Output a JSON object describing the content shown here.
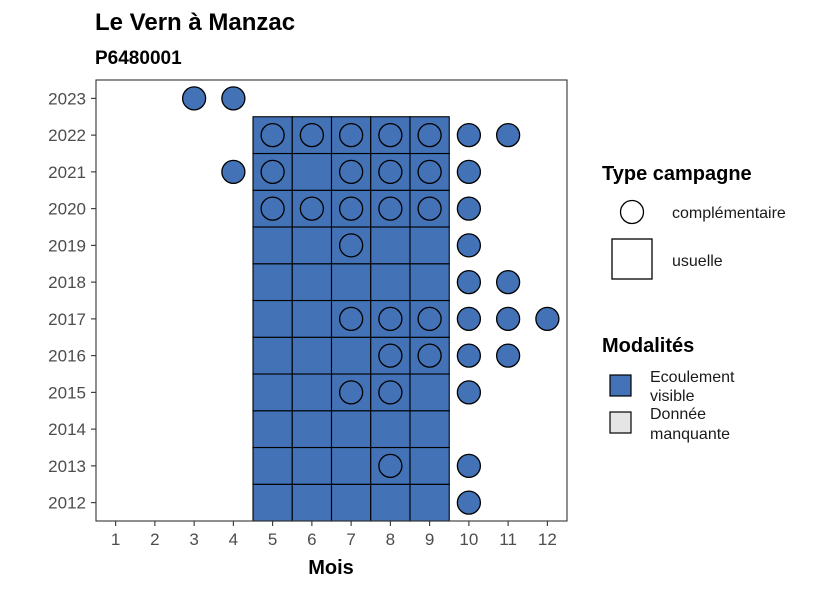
{
  "chart_data": {
    "type": "heatmap",
    "title": "Le Vern à Manzac",
    "subtitle": "P6480001",
    "xlabel": "Mois",
    "ylabel": "",
    "x_ticks": [
      1,
      2,
      3,
      4,
      5,
      6,
      7,
      8,
      9,
      10,
      11,
      12
    ],
    "y_ticks": [
      2012,
      2013,
      2014,
      2015,
      2016,
      2017,
      2018,
      2019,
      2020,
      2021,
      2022,
      2023
    ],
    "xlim": [
      0.5,
      12.5
    ],
    "ylim": [
      2011.5,
      2023.5
    ],
    "grid": false,
    "colors": {
      "ecoulement_visible": "#4372b6",
      "donnee_manquante": "#e5e5e5",
      "outline": "#000000"
    },
    "usuelle_tiles": {
      "modalite": "Ecoulement visible",
      "months": [
        5,
        6,
        7,
        8,
        9
      ],
      "years": [
        2012,
        2013,
        2014,
        2015,
        2016,
        2017,
        2018,
        2019,
        2020,
        2021,
        2022
      ]
    },
    "complementaire_points": [
      {
        "year": 2023,
        "months": [
          3,
          4
        ]
      },
      {
        "year": 2022,
        "months": [
          5,
          6,
          7,
          8,
          9,
          10,
          11
        ]
      },
      {
        "year": 2021,
        "months": [
          4,
          5,
          7,
          8,
          9,
          10
        ]
      },
      {
        "year": 2020,
        "months": [
          5,
          6,
          7,
          8,
          9,
          10
        ]
      },
      {
        "year": 2019,
        "months": [
          7,
          10
        ]
      },
      {
        "year": 2018,
        "months": [
          10,
          11
        ]
      },
      {
        "year": 2017,
        "months": [
          7,
          8,
          9,
          10,
          11,
          12
        ]
      },
      {
        "year": 2016,
        "months": [
          8,
          9,
          10,
          11
        ]
      },
      {
        "year": 2015,
        "months": [
          7,
          8,
          10
        ]
      },
      {
        "year": 2014,
        "months": []
      },
      {
        "year": 2013,
        "months": [
          8,
          10
        ]
      },
      {
        "year": 2012,
        "months": [
          10
        ]
      }
    ],
    "legend_placement": "right",
    "legend": {
      "type_campagne": {
        "title": "Type campagne",
        "items": [
          "complémentaire",
          "usuelle"
        ]
      },
      "modalites": {
        "title": "Modalités",
        "items": [
          {
            "lines": [
              "Ecoulement",
              "visible"
            ],
            "color": "#4372b6"
          },
          {
            "lines": [
              "Donnée",
              "manquante"
            ],
            "color": "#e5e5e5"
          }
        ]
      }
    }
  }
}
